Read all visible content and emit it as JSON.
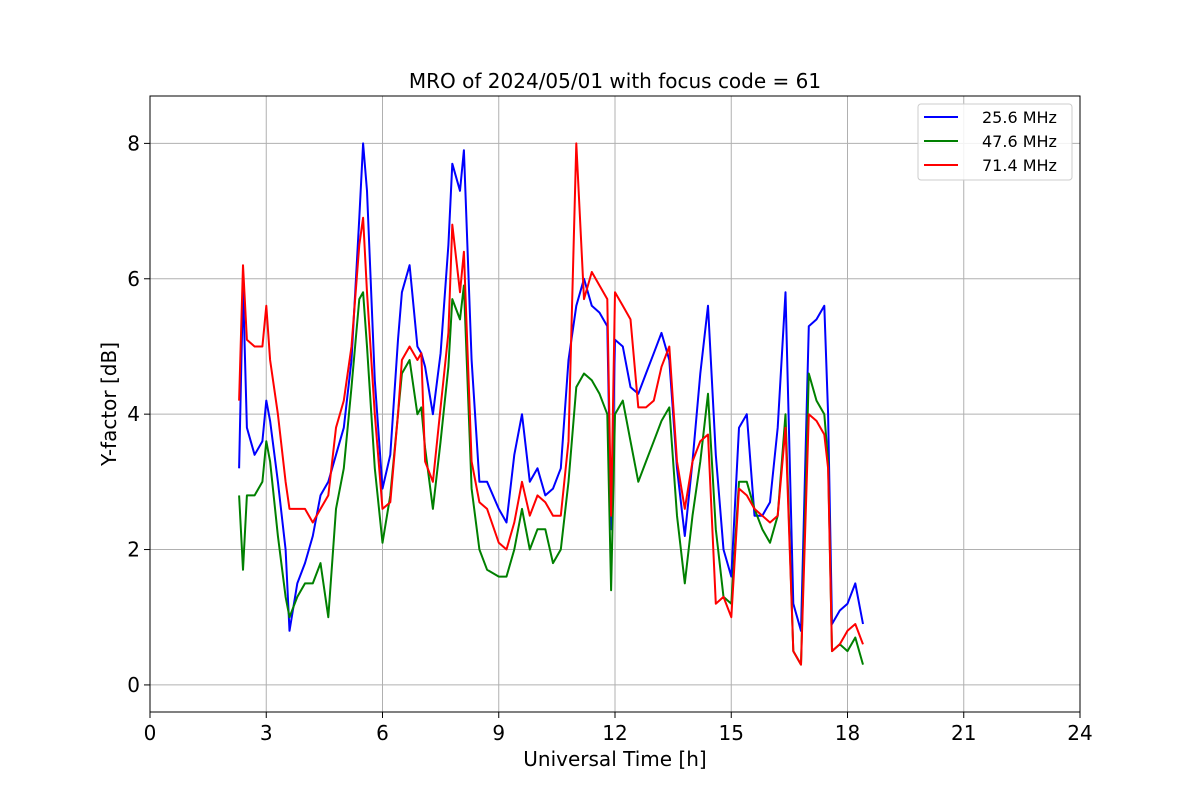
{
  "chart_data": {
    "type": "line",
    "title": "MRO of 2024/05/01 with focus code = 61",
    "xlabel": "Universal Time [h]",
    "ylabel": "Y-factor [dB]",
    "xlim": [
      0,
      24
    ],
    "ylim": [
      -0.4,
      8.7
    ],
    "xticks": [
      0,
      3,
      6,
      9,
      12,
      15,
      18,
      21,
      24
    ],
    "yticks": [
      0,
      2,
      4,
      6,
      8
    ],
    "grid": true,
    "legend_position": "top-right",
    "series": [
      {
        "name": "25.6 MHz",
        "color": "#0000ff",
        "x": [
          2.3,
          2.4,
          2.5,
          2.7,
          2.9,
          3.0,
          3.1,
          3.3,
          3.5,
          3.6,
          3.8,
          4.0,
          4.2,
          4.4,
          4.6,
          4.8,
          5.0,
          5.2,
          5.4,
          5.5,
          5.6,
          5.8,
          6.0,
          6.2,
          6.4,
          6.5,
          6.7,
          6.9,
          7.0,
          7.1,
          7.3,
          7.5,
          7.7,
          7.8,
          8.0,
          8.1,
          8.3,
          8.5,
          8.7,
          9.0,
          9.2,
          9.4,
          9.6,
          9.8,
          10.0,
          10.2,
          10.4,
          10.6,
          10.8,
          11.0,
          11.2,
          11.4,
          11.6,
          11.8,
          11.9,
          12.0,
          12.2,
          12.4,
          12.6,
          12.8,
          13.0,
          13.2,
          13.4,
          13.6,
          13.8,
          14.0,
          14.2,
          14.4,
          14.6,
          14.8,
          15.0,
          15.2,
          15.4,
          15.6,
          15.8,
          16.0,
          16.2,
          16.4,
          16.6,
          16.8,
          17.0,
          17.2,
          17.4,
          17.5,
          17.6,
          17.8,
          18.0,
          18.2,
          18.4
        ],
        "y": [
          3.2,
          5.9,
          3.8,
          3.4,
          3.6,
          4.2,
          3.9,
          3.0,
          2.0,
          0.8,
          1.5,
          1.8,
          2.2,
          2.8,
          3.0,
          3.4,
          3.8,
          4.8,
          6.9,
          8.0,
          7.3,
          4.5,
          2.9,
          3.4,
          5.1,
          5.8,
          6.2,
          5.0,
          4.9,
          4.7,
          4.0,
          4.9,
          6.5,
          7.7,
          7.3,
          7.9,
          4.8,
          3.0,
          3.0,
          2.6,
          2.4,
          3.4,
          4.0,
          3.0,
          3.2,
          2.8,
          2.9,
          3.2,
          4.8,
          5.6,
          6.0,
          5.6,
          5.5,
          5.3,
          2.3,
          5.1,
          5.0,
          4.4,
          4.3,
          4.6,
          4.9,
          5.2,
          4.8,
          3.2,
          2.2,
          3.3,
          4.6,
          5.6,
          3.4,
          2.0,
          1.6,
          3.8,
          4.0,
          2.5,
          2.5,
          2.7,
          3.8,
          5.8,
          1.2,
          0.8,
          5.3,
          5.4,
          5.6,
          4.0,
          0.9,
          1.1,
          1.2,
          1.5,
          0.9
        ]
      },
      {
        "name": "47.6 MHz",
        "color": "#008000",
        "x": [
          2.3,
          2.4,
          2.5,
          2.7,
          2.9,
          3.0,
          3.1,
          3.3,
          3.5,
          3.6,
          3.8,
          4.0,
          4.2,
          4.4,
          4.6,
          4.8,
          5.0,
          5.2,
          5.4,
          5.5,
          5.6,
          5.8,
          6.0,
          6.2,
          6.4,
          6.5,
          6.7,
          6.9,
          7.0,
          7.1,
          7.3,
          7.5,
          7.7,
          7.8,
          8.0,
          8.1,
          8.3,
          8.5,
          8.7,
          9.0,
          9.2,
          9.4,
          9.6,
          9.8,
          10.0,
          10.2,
          10.4,
          10.6,
          10.8,
          11.0,
          11.2,
          11.4,
          11.6,
          11.8,
          11.9,
          12.0,
          12.2,
          12.4,
          12.6,
          12.8,
          13.0,
          13.2,
          13.4,
          13.6,
          13.8,
          14.0,
          14.2,
          14.4,
          14.6,
          14.8,
          15.0,
          15.2,
          15.4,
          15.6,
          15.8,
          16.0,
          16.2,
          16.4,
          16.6,
          16.8,
          17.0,
          17.2,
          17.4,
          17.5,
          17.6,
          17.8,
          18.0,
          18.2,
          18.4
        ],
        "y": [
          2.8,
          1.7,
          2.8,
          2.8,
          3.0,
          3.6,
          3.3,
          2.2,
          1.3,
          1.0,
          1.3,
          1.5,
          1.5,
          1.8,
          1.0,
          2.6,
          3.2,
          4.4,
          5.7,
          5.8,
          5.0,
          3.2,
          2.1,
          2.8,
          4.0,
          4.6,
          4.8,
          4.0,
          4.1,
          3.5,
          2.6,
          3.6,
          4.7,
          5.7,
          5.4,
          5.9,
          2.9,
          2.0,
          1.7,
          1.6,
          1.6,
          2.0,
          2.6,
          2.0,
          2.3,
          2.3,
          1.8,
          2.0,
          3.0,
          4.4,
          4.6,
          4.5,
          4.3,
          4.0,
          1.4,
          4.0,
          4.2,
          3.6,
          3.0,
          3.3,
          3.6,
          3.9,
          4.1,
          2.5,
          1.5,
          2.5,
          3.3,
          4.3,
          2.3,
          1.3,
          1.2,
          3.0,
          3.0,
          2.6,
          2.3,
          2.1,
          2.5,
          4.0,
          0.5,
          0.3,
          4.6,
          4.2,
          4.0,
          3.3,
          0.5,
          0.6,
          0.5,
          0.7,
          0.3
        ]
      },
      {
        "name": "71.4 MHz",
        "color": "#ff0000",
        "x": [
          2.3,
          2.4,
          2.5,
          2.7,
          2.9,
          3.0,
          3.1,
          3.3,
          3.5,
          3.6,
          3.8,
          4.0,
          4.2,
          4.4,
          4.6,
          4.8,
          5.0,
          5.2,
          5.4,
          5.5,
          5.6,
          5.8,
          6.0,
          6.2,
          6.4,
          6.5,
          6.7,
          6.9,
          7.0,
          7.1,
          7.3,
          7.5,
          7.7,
          7.8,
          8.0,
          8.1,
          8.3,
          8.5,
          8.7,
          9.0,
          9.2,
          9.4,
          9.6,
          9.8,
          10.0,
          10.2,
          10.4,
          10.6,
          10.8,
          11.0,
          11.2,
          11.4,
          11.6,
          11.8,
          11.9,
          12.0,
          12.2,
          12.4,
          12.6,
          12.8,
          13.0,
          13.2,
          13.4,
          13.6,
          13.8,
          14.0,
          14.2,
          14.4,
          14.6,
          14.8,
          15.0,
          15.2,
          15.4,
          15.6,
          15.8,
          16.0,
          16.2,
          16.4,
          16.6,
          16.8,
          17.0,
          17.2,
          17.4,
          17.5,
          17.6,
          17.8,
          18.0,
          18.2,
          18.4
        ],
        "y": [
          4.2,
          6.2,
          5.1,
          5.0,
          5.0,
          5.6,
          4.8,
          4.0,
          3.0,
          2.6,
          2.6,
          2.6,
          2.4,
          2.6,
          2.8,
          3.8,
          4.2,
          5.0,
          6.5,
          6.9,
          5.8,
          4.0,
          2.6,
          2.7,
          4.0,
          4.8,
          5.0,
          4.8,
          4.9,
          3.3,
          3.0,
          4.1,
          5.2,
          6.8,
          5.8,
          6.4,
          3.3,
          2.7,
          2.6,
          2.1,
          2.0,
          2.4,
          3.0,
          2.5,
          2.8,
          2.7,
          2.5,
          2.5,
          3.6,
          8.0,
          5.7,
          6.1,
          5.9,
          5.7,
          2.5,
          5.8,
          5.6,
          5.4,
          4.1,
          4.1,
          4.2,
          4.7,
          5.0,
          3.3,
          2.6,
          3.3,
          3.6,
          3.7,
          1.2,
          1.3,
          1.0,
          2.9,
          2.8,
          2.6,
          2.5,
          2.4,
          2.5,
          3.8,
          0.5,
          0.3,
          4.0,
          3.9,
          3.7,
          3.2,
          0.5,
          0.6,
          0.8,
          0.9,
          0.6
        ]
      }
    ]
  }
}
